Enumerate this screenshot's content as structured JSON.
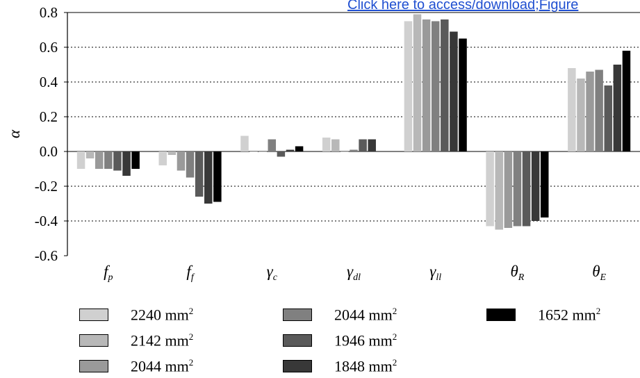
{
  "link": {
    "text": "Click here to access/download;Figure"
  },
  "chart_data": {
    "type": "bar",
    "ylabel": "α",
    "ylim": [
      -0.6,
      0.8
    ],
    "yticks": [
      0.8,
      0.6,
      0.4,
      0.2,
      0.0,
      -0.2,
      -0.4,
      -0.6
    ],
    "ytick_labels": [
      "0.8",
      "0.6",
      "0.4",
      "0.2",
      "0.0",
      "-0.2",
      "-0.4",
      "-0.6"
    ],
    "grid": "dotted horizontal",
    "categories": [
      {
        "main": "f",
        "sub": "p"
      },
      {
        "main": "f",
        "sub": "f"
      },
      {
        "main": "γ",
        "sub": "c"
      },
      {
        "main": "γ",
        "sub": "dl"
      },
      {
        "main": "γ",
        "sub": "ll"
      },
      {
        "main": "θ",
        "sub": "R"
      },
      {
        "main": "θ",
        "sub": "E"
      }
    ],
    "series": [
      {
        "name": "2240 mm",
        "unit_sup": "2",
        "color": "#d0d0d0",
        "values": [
          -0.1,
          -0.08,
          0.09,
          0.08,
          0.75,
          -0.43,
          0.48
        ]
      },
      {
        "name": "2142 mm",
        "unit_sup": "2",
        "color": "#b8b8b8",
        "values": [
          -0.04,
          -0.02,
          0.0,
          0.07,
          0.79,
          -0.45,
          0.42
        ]
      },
      {
        "name": "2044 mm",
        "unit_sup": "2",
        "color": "#9a9a9a",
        "values": [
          -0.1,
          -0.11,
          0.0,
          0.0,
          0.76,
          -0.44,
          0.46
        ]
      },
      {
        "name": "2044 mm",
        "unit_sup": "2",
        "color": "#808080",
        "values": [
          -0.1,
          -0.15,
          0.07,
          0.01,
          0.75,
          -0.43,
          0.47
        ]
      },
      {
        "name": "1946 mm",
        "unit_sup": "2",
        "color": "#5a5a5a",
        "values": [
          -0.11,
          -0.26,
          -0.03,
          0.07,
          0.76,
          -0.43,
          0.38
        ]
      },
      {
        "name": "1848 mm",
        "unit_sup": "2",
        "color": "#383838",
        "values": [
          -0.14,
          -0.3,
          0.01,
          0.07,
          0.69,
          -0.4,
          0.5
        ]
      },
      {
        "name": "1652 mm",
        "unit_sup": "2",
        "color": "#000000",
        "values": [
          -0.1,
          -0.29,
          0.03,
          0.0,
          0.65,
          -0.38,
          0.58
        ]
      }
    ]
  }
}
